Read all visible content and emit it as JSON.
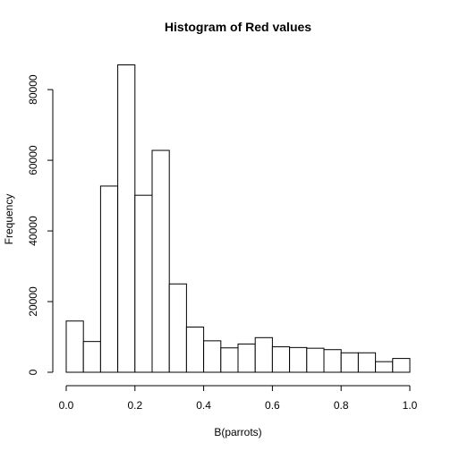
{
  "chart_data": {
    "type": "bar",
    "title": "Histogram of Red values",
    "xlabel": "B(parrots)",
    "ylabel": "Frequency",
    "xlim": [
      0,
      1
    ],
    "ylim": [
      0,
      87000
    ],
    "bin_width": 0.05,
    "bins": [
      {
        "start": 0.0,
        "end": 0.05,
        "count": 14500
      },
      {
        "start": 0.05,
        "end": 0.1,
        "count": 8700
      },
      {
        "start": 0.1,
        "end": 0.15,
        "count": 52700
      },
      {
        "start": 0.15,
        "end": 0.2,
        "count": 87000
      },
      {
        "start": 0.2,
        "end": 0.25,
        "count": 50100
      },
      {
        "start": 0.25,
        "end": 0.3,
        "count": 62800
      },
      {
        "start": 0.3,
        "end": 0.35,
        "count": 25000
      },
      {
        "start": 0.35,
        "end": 0.4,
        "count": 12800
      },
      {
        "start": 0.4,
        "end": 0.45,
        "count": 8900
      },
      {
        "start": 0.45,
        "end": 0.5,
        "count": 6900
      },
      {
        "start": 0.5,
        "end": 0.55,
        "count": 8000
      },
      {
        "start": 0.55,
        "end": 0.6,
        "count": 9800
      },
      {
        "start": 0.6,
        "end": 0.65,
        "count": 7200
      },
      {
        "start": 0.65,
        "end": 0.7,
        "count": 7000
      },
      {
        "start": 0.7,
        "end": 0.75,
        "count": 6800
      },
      {
        "start": 0.75,
        "end": 0.8,
        "count": 6400
      },
      {
        "start": 0.8,
        "end": 0.85,
        "count": 5500
      },
      {
        "start": 0.85,
        "end": 0.9,
        "count": 5500
      },
      {
        "start": 0.9,
        "end": 0.95,
        "count": 3000
      },
      {
        "start": 0.95,
        "end": 1.0,
        "count": 3900
      }
    ],
    "x_ticks": [
      {
        "value": 0.0,
        "label": "0.0"
      },
      {
        "value": 0.2,
        "label": "0.2"
      },
      {
        "value": 0.4,
        "label": "0.4"
      },
      {
        "value": 0.6,
        "label": "0.6"
      },
      {
        "value": 0.8,
        "label": "0.8"
      },
      {
        "value": 1.0,
        "label": "1.0"
      }
    ],
    "y_ticks": [
      {
        "value": 0,
        "label": "0"
      },
      {
        "value": 20000,
        "label": "20000"
      },
      {
        "value": 40000,
        "label": "40000"
      },
      {
        "value": 60000,
        "label": "60000"
      },
      {
        "value": 80000,
        "label": "80000"
      }
    ],
    "y_axis_extent": [
      0,
      80000
    ],
    "grid": false,
    "bar_fill": "#ffffff",
    "bar_stroke": "#000000"
  }
}
